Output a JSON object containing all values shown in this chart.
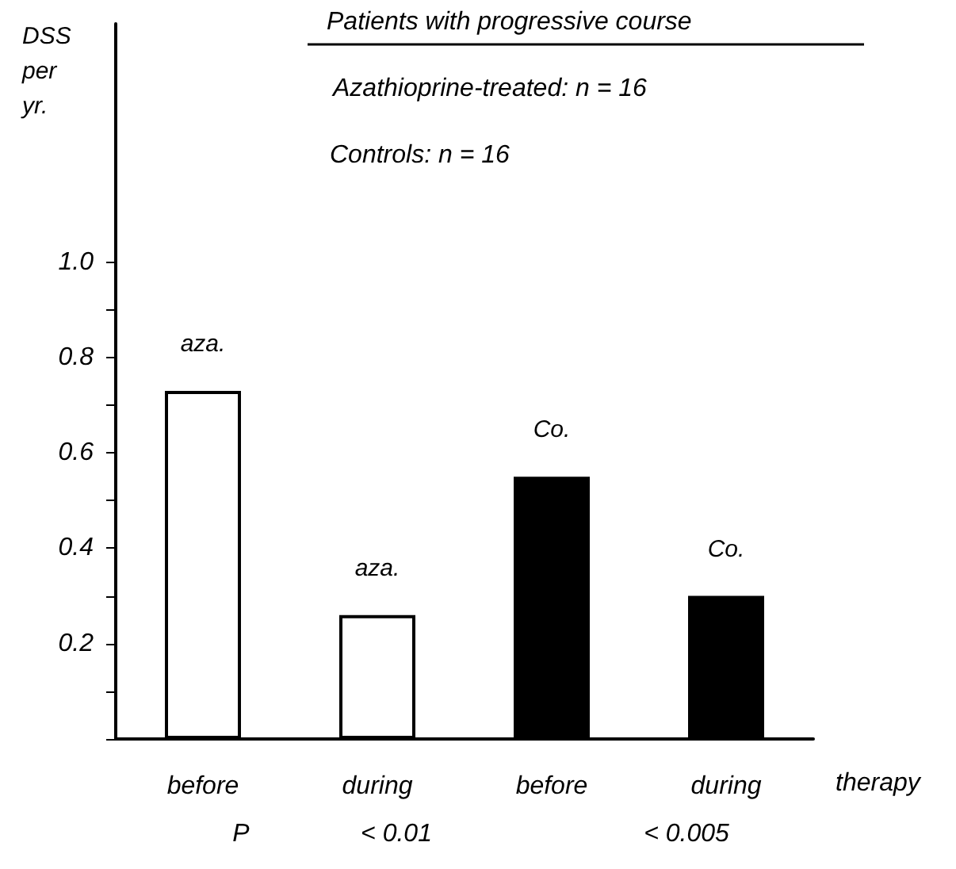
{
  "chart_data": {
    "type": "bar",
    "title": "Patients with progressive course",
    "xlabel": "therapy",
    "ylabel": "DSS per yr.",
    "categories": [
      "before",
      "during",
      "before",
      "during"
    ],
    "values": [
      0.73,
      0.26,
      0.55,
      0.3
    ],
    "colors": [
      "#ffffff",
      "#ffffff",
      "#000000",
      "#000000"
    ],
    "value_labels": [
      "aza.",
      "aza.",
      "Co.",
      "Co."
    ],
    "ylim": [
      0,
      1.5
    ],
    "yticks": [
      {
        "value": 0,
        "label": null
      },
      {
        "value": 0.1,
        "label": null
      },
      0.2,
      {
        "value": 0.3,
        "label": null
      },
      0.4,
      {
        "value": 0.5,
        "label": null
      },
      0.6,
      {
        "value": 0.7,
        "label": null
      },
      0.8,
      {
        "value": 0.9,
        "label": null
      },
      {
        "value": 1,
        "label": "1.0"
      }
    ],
    "annotations": [
      "Azathioprine-treated: n = 16",
      "Controls: n = 16",
      "P",
      "< 0.01",
      "< 0.005"
    ],
    "grid": false
  }
}
